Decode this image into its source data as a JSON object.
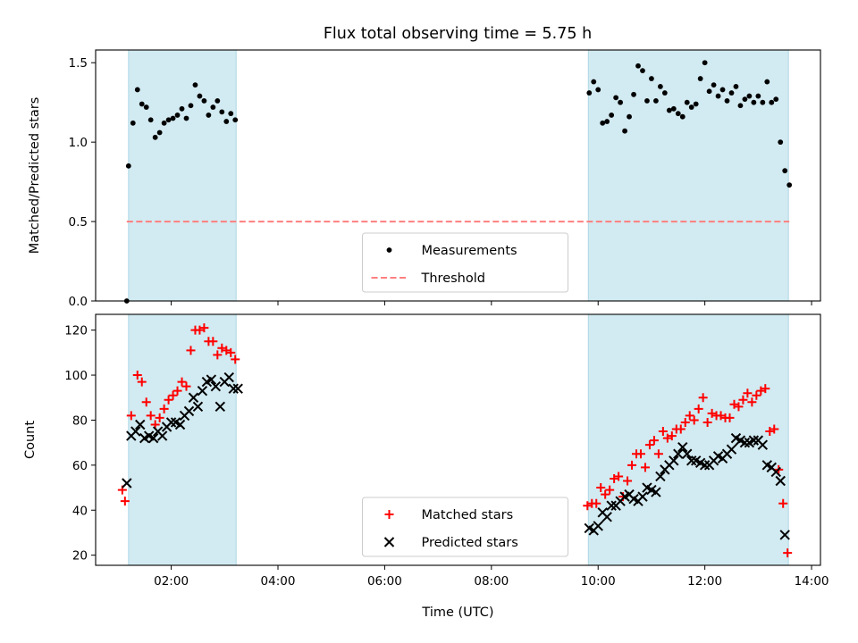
{
  "chart_data": [
    {
      "type": "scatter",
      "title": "Flux total observing time = 5.75 h",
      "xlabel": "",
      "ylabel": "Matched/Predicted stars",
      "xlim": [
        "00:35",
        "14:10"
      ],
      "ylim": [
        0,
        1.58
      ],
      "xticks": [
        "02:00",
        "04:00",
        "06:00",
        "08:00",
        "10:00",
        "12:00",
        "14:00"
      ],
      "xtick_labels_shown": false,
      "yticks": [
        0.0,
        0.5,
        1.0,
        1.5
      ],
      "ytick_labels": [
        "0.0",
        "0.5",
        "1.0",
        "1.5"
      ],
      "grid": false,
      "legend_position": "lower center",
      "shaded_intervals": [
        [
          "01:12",
          "03:13"
        ],
        [
          "09:49",
          "13:34"
        ]
      ],
      "shade_color": "#add8e6",
      "series": [
        {
          "name": "Measurements",
          "marker": "dot",
          "color": "#000000",
          "points": [
            [
              "01:10",
              0.0
            ],
            [
              "01:12",
              0.85
            ],
            [
              "01:17",
              1.12
            ],
            [
              "01:22",
              1.33
            ],
            [
              "01:27",
              1.24
            ],
            [
              "01:32",
              1.22
            ],
            [
              "01:37",
              1.14
            ],
            [
              "01:42",
              1.03
            ],
            [
              "01:47",
              1.06
            ],
            [
              "01:52",
              1.12
            ],
            [
              "01:57",
              1.14
            ],
            [
              "02:02",
              1.15
            ],
            [
              "02:07",
              1.17
            ],
            [
              "02:12",
              1.21
            ],
            [
              "02:17",
              1.15
            ],
            [
              "02:22",
              1.23
            ],
            [
              "02:27",
              1.36
            ],
            [
              "02:32",
              1.29
            ],
            [
              "02:37",
              1.26
            ],
            [
              "02:42",
              1.17
            ],
            [
              "02:47",
              1.22
            ],
            [
              "02:52",
              1.26
            ],
            [
              "02:57",
              1.19
            ],
            [
              "03:02",
              1.13
            ],
            [
              "03:07",
              1.18
            ],
            [
              "03:12",
              1.14
            ],
            [
              "09:50",
              1.31
            ],
            [
              "09:55",
              1.38
            ],
            [
              "10:00",
              1.33
            ],
            [
              "10:05",
              1.12
            ],
            [
              "10:10",
              1.13
            ],
            [
              "10:15",
              1.17
            ],
            [
              "10:20",
              1.28
            ],
            [
              "10:25",
              1.25
            ],
            [
              "10:30",
              1.07
            ],
            [
              "10:35",
              1.16
            ],
            [
              "10:40",
              1.3
            ],
            [
              "10:45",
              1.48
            ],
            [
              "10:50",
              1.45
            ],
            [
              "10:55",
              1.26
            ],
            [
              "11:00",
              1.4
            ],
            [
              "11:05",
              1.26
            ],
            [
              "11:10",
              1.35
            ],
            [
              "11:15",
              1.31
            ],
            [
              "11:20",
              1.2
            ],
            [
              "11:25",
              1.21
            ],
            [
              "11:30",
              1.18
            ],
            [
              "11:35",
              1.16
            ],
            [
              "11:40",
              1.25
            ],
            [
              "11:45",
              1.22
            ],
            [
              "11:50",
              1.24
            ],
            [
              "11:55",
              1.4
            ],
            [
              "12:00",
              1.5
            ],
            [
              "12:05",
              1.32
            ],
            [
              "12:10",
              1.36
            ],
            [
              "12:15",
              1.29
            ],
            [
              "12:20",
              1.33
            ],
            [
              "12:25",
              1.26
            ],
            [
              "12:30",
              1.31
            ],
            [
              "12:35",
              1.35
            ],
            [
              "12:40",
              1.23
            ],
            [
              "12:45",
              1.27
            ],
            [
              "12:50",
              1.29
            ],
            [
              "12:55",
              1.25
            ],
            [
              "13:00",
              1.29
            ],
            [
              "13:05",
              1.25
            ],
            [
              "13:10",
              1.38
            ],
            [
              "13:15",
              1.25
            ],
            [
              "13:20",
              1.27
            ],
            [
              "13:25",
              1.0
            ],
            [
              "13:30",
              0.82
            ],
            [
              "13:35",
              0.73
            ]
          ]
        },
        {
          "name": "Threshold",
          "marker": "dashed-line",
          "color": "#ff7f7f",
          "points": [
            [
              "01:10",
              0.5
            ],
            [
              "13:35",
              0.5
            ]
          ]
        }
      ]
    },
    {
      "type": "scatter",
      "title": "",
      "xlabel": "Time (UTC)",
      "ylabel": "Count",
      "xlim": [
        "00:35",
        "14:10"
      ],
      "ylim": [
        15.5,
        127
      ],
      "xticks": [
        "02:00",
        "04:00",
        "06:00",
        "08:00",
        "10:00",
        "12:00",
        "14:00"
      ],
      "xtick_labels": [
        "02:00",
        "04:00",
        "06:00",
        "08:00",
        "10:00",
        "12:00",
        "14:00"
      ],
      "yticks": [
        20,
        40,
        60,
        80,
        100,
        120
      ],
      "ytick_labels": [
        "20",
        "40",
        "60",
        "80",
        "100",
        "120"
      ],
      "grid": false,
      "legend_position": "lower center",
      "shaded_intervals": [
        [
          "01:12",
          "03:13"
        ],
        [
          "09:49",
          "13:34"
        ]
      ],
      "shade_color": "#add8e6",
      "series": [
        {
          "name": "Matched stars",
          "marker": "plus",
          "color": "#ff0000",
          "points": [
            [
              "01:05",
              49
            ],
            [
              "01:08",
              44
            ],
            [
              "01:15",
              82
            ],
            [
              "01:22",
              100
            ],
            [
              "01:27",
              97
            ],
            [
              "01:32",
              88
            ],
            [
              "01:37",
              82
            ],
            [
              "01:42",
              78
            ],
            [
              "01:47",
              81
            ],
            [
              "01:52",
              85
            ],
            [
              "01:57",
              89
            ],
            [
              "02:02",
              91
            ],
            [
              "02:07",
              93
            ],
            [
              "02:12",
              97
            ],
            [
              "02:17",
              95
            ],
            [
              "02:22",
              111
            ],
            [
              "02:27",
              120
            ],
            [
              "02:32",
              120
            ],
            [
              "02:37",
              121
            ],
            [
              "02:42",
              115
            ],
            [
              "02:47",
              115
            ],
            [
              "02:52",
              109
            ],
            [
              "02:57",
              112
            ],
            [
              "03:02",
              111
            ],
            [
              "03:07",
              110
            ],
            [
              "03:12",
              107
            ],
            [
              "09:48",
              42
            ],
            [
              "09:53",
              43
            ],
            [
              "09:58",
              43
            ],
            [
              "10:03",
              50
            ],
            [
              "10:08",
              47
            ],
            [
              "10:13",
              49
            ],
            [
              "10:18",
              54
            ],
            [
              "10:23",
              55
            ],
            [
              "10:28",
              46
            ],
            [
              "10:33",
              53
            ],
            [
              "10:38",
              60
            ],
            [
              "10:43",
              65
            ],
            [
              "10:48",
              65
            ],
            [
              "10:53",
              59
            ],
            [
              "10:58",
              69
            ],
            [
              "11:03",
              71
            ],
            [
              "11:08",
              65
            ],
            [
              "11:13",
              75
            ],
            [
              "11:18",
              72
            ],
            [
              "11:23",
              73
            ],
            [
              "11:28",
              76
            ],
            [
              "11:33",
              76
            ],
            [
              "11:38",
              79
            ],
            [
              "11:43",
              82
            ],
            [
              "11:48",
              80
            ],
            [
              "11:53",
              85
            ],
            [
              "11:58",
              90
            ],
            [
              "12:03",
              79
            ],
            [
              "12:08",
              83
            ],
            [
              "12:13",
              82
            ],
            [
              "12:18",
              82
            ],
            [
              "12:23",
              81
            ],
            [
              "12:28",
              81
            ],
            [
              "12:33",
              87
            ],
            [
              "12:38",
              86
            ],
            [
              "12:43",
              89
            ],
            [
              "12:48",
              92
            ],
            [
              "12:53",
              88
            ],
            [
              "12:58",
              91
            ],
            [
              "13:03",
              93
            ],
            [
              "13:08",
              94
            ],
            [
              "13:13",
              75
            ],
            [
              "13:18",
              76
            ],
            [
              "13:23",
              58
            ],
            [
              "13:28",
              43
            ],
            [
              "13:33",
              21
            ]
          ]
        },
        {
          "name": "Predicted stars",
          "marker": "x",
          "color": "#000000",
          "points": [
            [
              "01:10",
              52
            ],
            [
              "01:15",
              73
            ],
            [
              "01:20",
              75
            ],
            [
              "01:25",
              78
            ],
            [
              "01:30",
              72
            ],
            [
              "01:35",
              73
            ],
            [
              "01:40",
              72
            ],
            [
              "01:45",
              75
            ],
            [
              "01:50",
              73
            ],
            [
              "01:55",
              77
            ],
            [
              "02:00",
              79
            ],
            [
              "02:05",
              79
            ],
            [
              "02:10",
              78
            ],
            [
              "02:15",
              82
            ],
            [
              "02:20",
              84
            ],
            [
              "02:25",
              90
            ],
            [
              "02:30",
              86
            ],
            [
              "02:35",
              93
            ],
            [
              "02:40",
              97
            ],
            [
              "02:45",
              98
            ],
            [
              "02:50",
              95
            ],
            [
              "02:55",
              86
            ],
            [
              "03:00",
              97
            ],
            [
              "03:05",
              99
            ],
            [
              "03:10",
              94
            ],
            [
              "03:15",
              94
            ],
            [
              "09:50",
              32
            ],
            [
              "09:55",
              31
            ],
            [
              "10:00",
              33
            ],
            [
              "10:05",
              39
            ],
            [
              "10:10",
              37
            ],
            [
              "10:15",
              42
            ],
            [
              "10:20",
              42
            ],
            [
              "10:25",
              44
            ],
            [
              "10:30",
              46
            ],
            [
              "10:35",
              47
            ],
            [
              "10:40",
              45
            ],
            [
              "10:45",
              44
            ],
            [
              "10:50",
              46
            ],
            [
              "10:55",
              50
            ],
            [
              "11:00",
              49
            ],
            [
              "11:05",
              48
            ],
            [
              "11:10",
              55
            ],
            [
              "11:15",
              58
            ],
            [
              "11:20",
              60
            ],
            [
              "11:25",
              62
            ],
            [
              "11:30",
              65
            ],
            [
              "11:35",
              68
            ],
            [
              "11:40",
              65
            ],
            [
              "11:45",
              62
            ],
            [
              "11:50",
              62
            ],
            [
              "11:55",
              61
            ],
            [
              "12:00",
              60
            ],
            [
              "12:05",
              60
            ],
            [
              "12:10",
              62
            ],
            [
              "12:15",
              64
            ],
            [
              "12:20",
              63
            ],
            [
              "12:25",
              65
            ],
            [
              "12:30",
              67
            ],
            [
              "12:35",
              72
            ],
            [
              "12:40",
              71
            ],
            [
              "12:45",
              70
            ],
            [
              "12:50",
              70
            ],
            [
              "12:55",
              71
            ],
            [
              "13:00",
              71
            ],
            [
              "13:05",
              69
            ],
            [
              "13:10",
              60
            ],
            [
              "13:15",
              59
            ],
            [
              "13:20",
              57
            ],
            [
              "13:25",
              53
            ],
            [
              "13:30",
              29
            ]
          ]
        }
      ]
    }
  ]
}
